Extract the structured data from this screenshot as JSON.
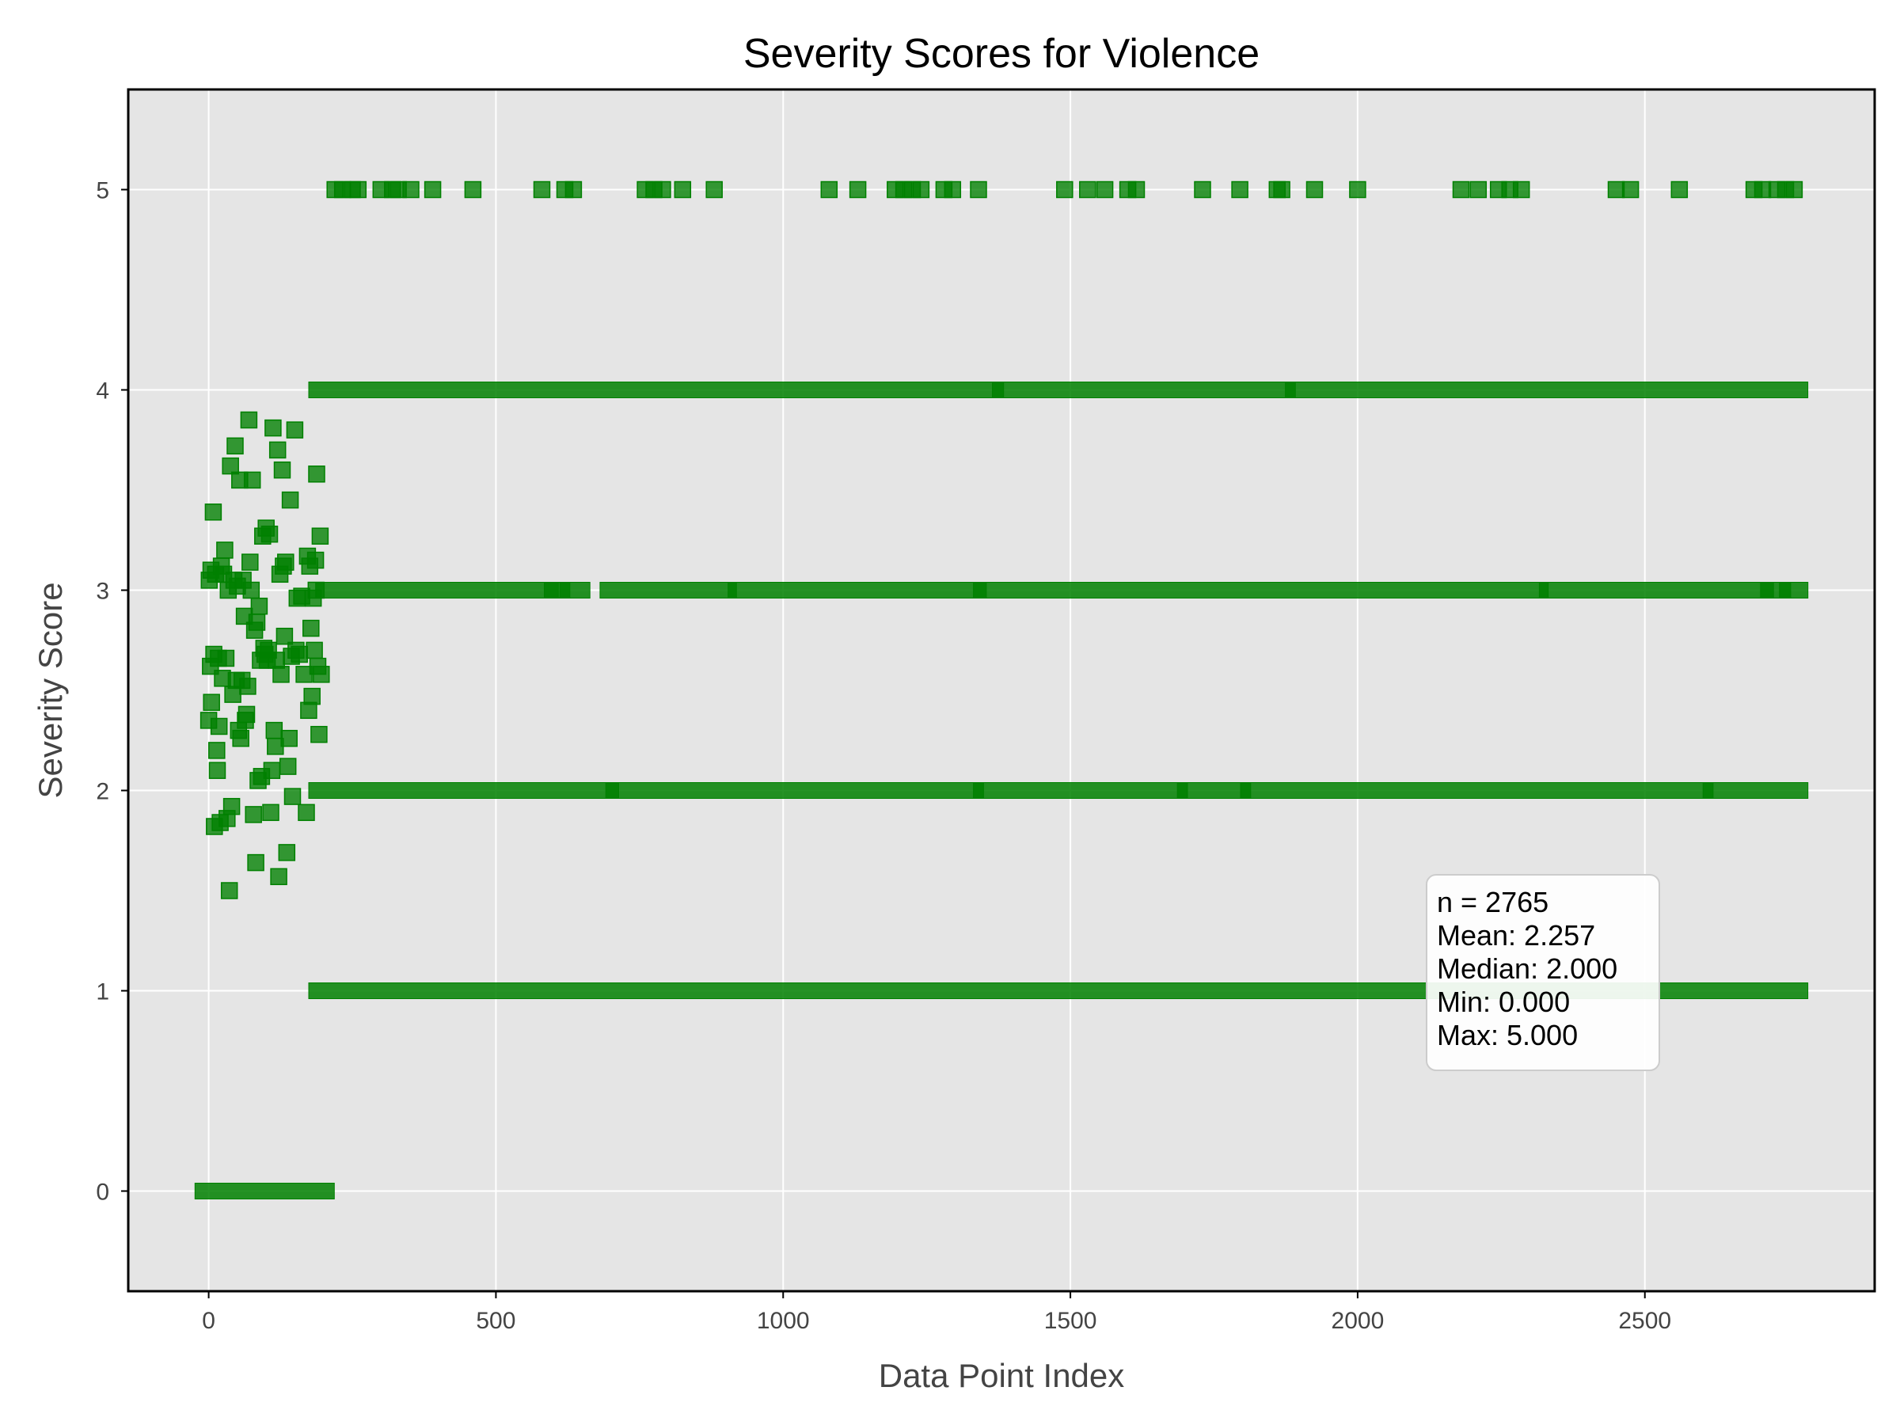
{
  "chart_data": {
    "type": "scatter",
    "title": "Severity Scores for Violence",
    "xlabel": "Data Point Index",
    "ylabel": "Severity Score",
    "xlim": [
      -140,
      2900
    ],
    "ylim": [
      -0.5,
      5.5
    ],
    "xticks": [
      0,
      500,
      1000,
      1500,
      2000,
      2500
    ],
    "yticks": [
      0,
      1,
      2,
      3,
      4,
      5
    ],
    "grid": true,
    "n": 2765,
    "marker": "square",
    "color": "#008000",
    "background": "#e5e5e5",
    "stats_box": {
      "position": "lower-right",
      "lines": [
        "n = 2765",
        "Mean: 2.257",
        "Median: 2.000",
        "Min: 0.000",
        "Max: 5.000"
      ]
    },
    "early_points": [
      [
        0,
        2.35
      ],
      [
        1,
        3.05
      ],
      [
        3,
        2.62
      ],
      [
        4,
        3.1
      ],
      [
        5,
        2.44
      ],
      [
        8,
        3.39
      ],
      [
        9,
        2.68
      ],
      [
        10,
        1.82
      ],
      [
        12,
        3.08
      ],
      [
        14,
        2.2
      ],
      [
        15,
        2.1
      ],
      [
        17,
        2.66
      ],
      [
        18,
        2.32
      ],
      [
        20,
        1.84
      ],
      [
        22,
        3.12
      ],
      [
        24,
        2.56
      ],
      [
        26,
        3.08
      ],
      [
        28,
        3.2
      ],
      [
        30,
        2.66
      ],
      [
        32,
        1.86
      ],
      [
        34,
        3.0
      ],
      [
        36,
        1.5
      ],
      [
        38,
        3.62
      ],
      [
        40,
        1.92
      ],
      [
        42,
        2.48
      ],
      [
        44,
        3.05
      ],
      [
        46,
        3.72
      ],
      [
        48,
        2.55
      ],
      [
        50,
        3.02
      ],
      [
        52,
        2.3
      ],
      [
        54,
        3.55
      ],
      [
        56,
        2.26
      ],
      [
        58,
        2.55
      ],
      [
        60,
        3.05
      ],
      [
        62,
        2.87
      ],
      [
        64,
        2.35
      ],
      [
        66,
        2.38
      ],
      [
        68,
        2.52
      ],
      [
        70,
        3.85
      ],
      [
        72,
        3.14
      ],
      [
        74,
        3.0
      ],
      [
        76,
        3.55
      ],
      [
        78,
        1.88
      ],
      [
        80,
        2.8
      ],
      [
        82,
        1.64
      ],
      [
        84,
        2.84
      ],
      [
        86,
        2.05
      ],
      [
        88,
        2.92
      ],
      [
        90,
        2.65
      ],
      [
        92,
        2.07
      ],
      [
        94,
        3.27
      ],
      [
        96,
        2.71
      ],
      [
        98,
        2.68
      ],
      [
        100,
        3.31
      ],
      [
        102,
        2.65
      ],
      [
        104,
        2.7
      ],
      [
        106,
        3.28
      ],
      [
        108,
        1.89
      ],
      [
        110,
        2.1
      ],
      [
        112,
        3.81
      ],
      [
        114,
        2.3
      ],
      [
        116,
        2.22
      ],
      [
        118,
        2.65
      ],
      [
        120,
        3.7
      ],
      [
        122,
        1.57
      ],
      [
        124,
        3.08
      ],
      [
        126,
        2.58
      ],
      [
        128,
        3.6
      ],
      [
        130,
        3.12
      ],
      [
        132,
        2.77
      ],
      [
        134,
        3.14
      ],
      [
        136,
        1.69
      ],
      [
        138,
        2.12
      ],
      [
        140,
        2.26
      ],
      [
        142,
        3.45
      ],
      [
        144,
        2.67
      ],
      [
        146,
        1.97
      ],
      [
        150,
        3.8
      ],
      [
        152,
        2.7
      ],
      [
        154,
        2.96
      ],
      [
        158,
        2.68
      ],
      [
        162,
        2.97
      ],
      [
        166,
        2.58
      ],
      [
        170,
        1.89
      ],
      [
        172,
        3.17
      ],
      [
        174,
        2.4
      ],
      [
        176,
        3.12
      ],
      [
        178,
        2.81
      ],
      [
        180,
        2.47
      ],
      [
        182,
        2.96
      ],
      [
        184,
        2.7
      ],
      [
        186,
        3.15
      ],
      [
        187,
        3.0
      ],
      [
        188,
        3.58
      ],
      [
        190,
        2.62
      ],
      [
        192,
        2.28
      ],
      [
        194,
        3.27
      ],
      [
        196,
        2.58
      ]
    ],
    "level_segments": [
      {
        "y": 0,
        "ranges": [
          [
            -10,
            205
          ]
        ]
      },
      {
        "y": 1,
        "ranges": [
          [
            188,
            2770
          ]
        ]
      },
      {
        "y": 2,
        "ranges": [
          [
            188,
            700
          ],
          [
            705,
            1335
          ],
          [
            1345,
            1690
          ],
          [
            1700,
            1800
          ],
          [
            1810,
            2605
          ],
          [
            2615,
            2770
          ]
        ]
      },
      {
        "y": 3,
        "ranges": [
          [
            200,
            595
          ],
          [
            598,
            615
          ],
          [
            625,
            650
          ],
          [
            695,
            905
          ],
          [
            918,
            1340
          ],
          [
            1345,
            2318
          ],
          [
            2330,
            2710
          ],
          [
            2715,
            2740
          ],
          [
            2748,
            2770
          ]
        ]
      },
      {
        "y": 4,
        "ranges": [
          [
            188,
            1370
          ],
          [
            1378,
            1878
          ],
          [
            1888,
            2770
          ]
        ]
      }
    ],
    "level5_points": [
      220,
      233,
      250,
      260,
      300,
      320,
      330,
      352,
      390,
      460,
      580,
      620,
      635,
      760,
      775,
      790,
      825,
      880,
      1080,
      1130,
      1195,
      1210,
      1225,
      1240,
      1280,
      1295,
      1340,
      1490,
      1530,
      1560,
      1600,
      1615,
      1730,
      1795,
      1860,
      1868,
      1925,
      2000,
      2180,
      2210,
      2245,
      2265,
      2285,
      2450,
      2475,
      2560,
      2690,
      2705,
      2730,
      2745,
      2760
    ]
  }
}
